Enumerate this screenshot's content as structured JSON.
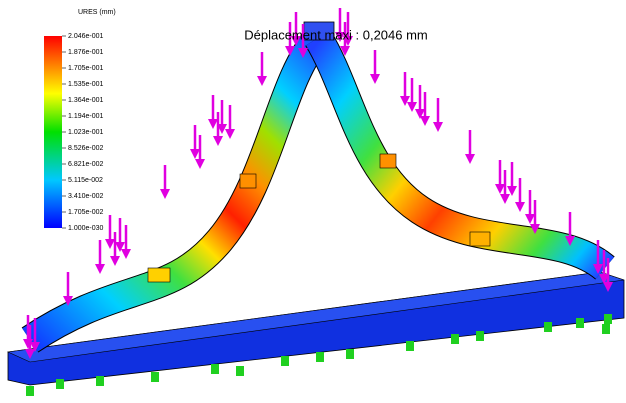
{
  "title": "Déplacement maxi : 0,2046 mm",
  "legend": {
    "title": "URES (mm)",
    "labels": [
      "2.046e-001",
      "1.876e-001",
      "1.705e-001",
      "1.535e-001",
      "1.364e-001",
      "1.194e-001",
      "1.023e-001",
      "8.526e-002",
      "6.821e-002",
      "5.115e-002",
      "3.410e-002",
      "1.705e-002",
      "1.000e-030"
    ]
  }
}
